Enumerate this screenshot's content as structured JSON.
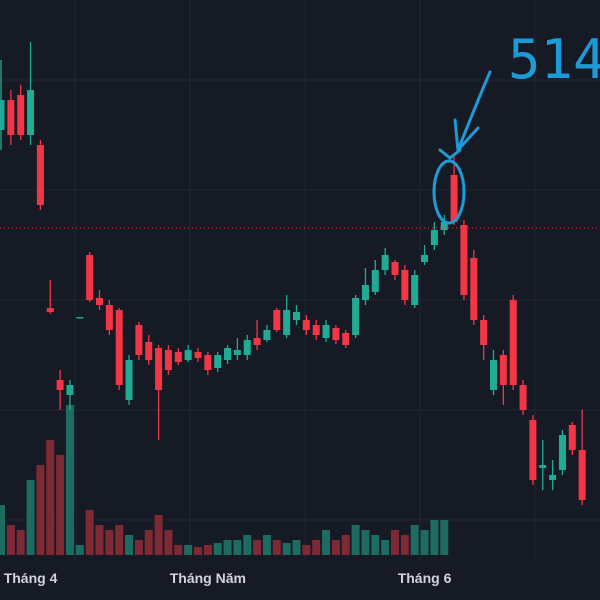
{
  "chart_data": {
    "type": "candlestick",
    "categories": [
      null,
      null,
      null,
      "Tháng 4",
      null,
      null,
      null,
      null,
      null,
      null,
      null,
      null,
      null,
      null,
      null,
      null,
      null,
      null,
      null,
      null,
      null,
      "Tháng Năm",
      null,
      null,
      null,
      null,
      null,
      null,
      null,
      null,
      null,
      null,
      null,
      null,
      null,
      null,
      null,
      null,
      null,
      null,
      null,
      null,
      null,
      "Tháng 6",
      null,
      null,
      null,
      null,
      null,
      null,
      null,
      null,
      null,
      null,
      null,
      null,
      null,
      null,
      null,
      null
    ],
    "open": [
      470,
      500,
      505,
      465,
      455,
      292,
      220,
      205,
      282,
      345,
      302,
      295,
      290,
      200,
      275,
      258,
      252,
      250,
      248,
      240,
      248,
      245,
      232,
      240,
      245,
      245,
      262,
      260,
      290,
      265,
      280,
      280,
      275,
      262,
      272,
      267,
      265,
      300,
      308,
      330,
      338,
      330,
      295,
      338,
      355,
      370,
      425,
      375,
      342,
      280,
      210,
      245,
      300,
      215,
      180,
      132,
      120,
      130,
      175,
      150
    ],
    "high": [
      540,
      510,
      515,
      558,
      460,
      320,
      230,
      220,
      283,
      348,
      310,
      300,
      292,
      245,
      278,
      265,
      255,
      255,
      252,
      255,
      252,
      248,
      248,
      255,
      262,
      265,
      280,
      275,
      292,
      305,
      295,
      285,
      280,
      280,
      275,
      270,
      305,
      332,
      340,
      352,
      340,
      335,
      330,
      355,
      378,
      385,
      445,
      380,
      350,
      285,
      250,
      250,
      305,
      220,
      185,
      160,
      140,
      170,
      178,
      190
    ],
    "low": [
      450,
      455,
      460,
      455,
      390,
      286,
      190,
      190,
      282,
      298,
      290,
      265,
      210,
      195,
      240,
      235,
      160,
      225,
      235,
      238,
      238,
      225,
      228,
      236,
      240,
      240,
      250,
      258,
      268,
      262,
      275,
      265,
      260,
      258,
      256,
      252,
      262,
      295,
      305,
      325,
      320,
      295,
      292,
      335,
      350,
      365,
      375,
      300,
      275,
      240,
      205,
      195,
      210,
      185,
      115,
      110,
      110,
      125,
      145,
      95
    ],
    "close": [
      500,
      465,
      465,
      510,
      395,
      288,
      210,
      215,
      283,
      300,
      295,
      270,
      215,
      240,
      245,
      240,
      210,
      230,
      238,
      250,
      242,
      230,
      245,
      252,
      250,
      260,
      255,
      270,
      270,
      290,
      288,
      270,
      265,
      275,
      260,
      255,
      302,
      315,
      330,
      345,
      325,
      300,
      325,
      345,
      370,
      378,
      378,
      305,
      280,
      255,
      240,
      215,
      215,
      190,
      120,
      135,
      125,
      165,
      150,
      100
    ],
    "volume": [
      50,
      30,
      25,
      75,
      90,
      115,
      100,
      150,
      10,
      45,
      30,
      25,
      30,
      20,
      15,
      25,
      40,
      25,
      10,
      10,
      8,
      10,
      12,
      15,
      15,
      20,
      15,
      20,
      15,
      12,
      15,
      10,
      15,
      25,
      15,
      20,
      30,
      25,
      20,
      15,
      25,
      20,
      30,
      25,
      35,
      35,
      null,
      null,
      null,
      null,
      null,
      null,
      null,
      null,
      null,
      null,
      null,
      null,
      null,
      null
    ],
    "up_color": "#22ab94",
    "down_color": "#f23645",
    "volume_up_color": "#1e6b61",
    "volume_down_color": "#7e2a35",
    "price_line": 372,
    "ylim": [
      0,
      600
    ],
    "annotation": "514"
  }
}
